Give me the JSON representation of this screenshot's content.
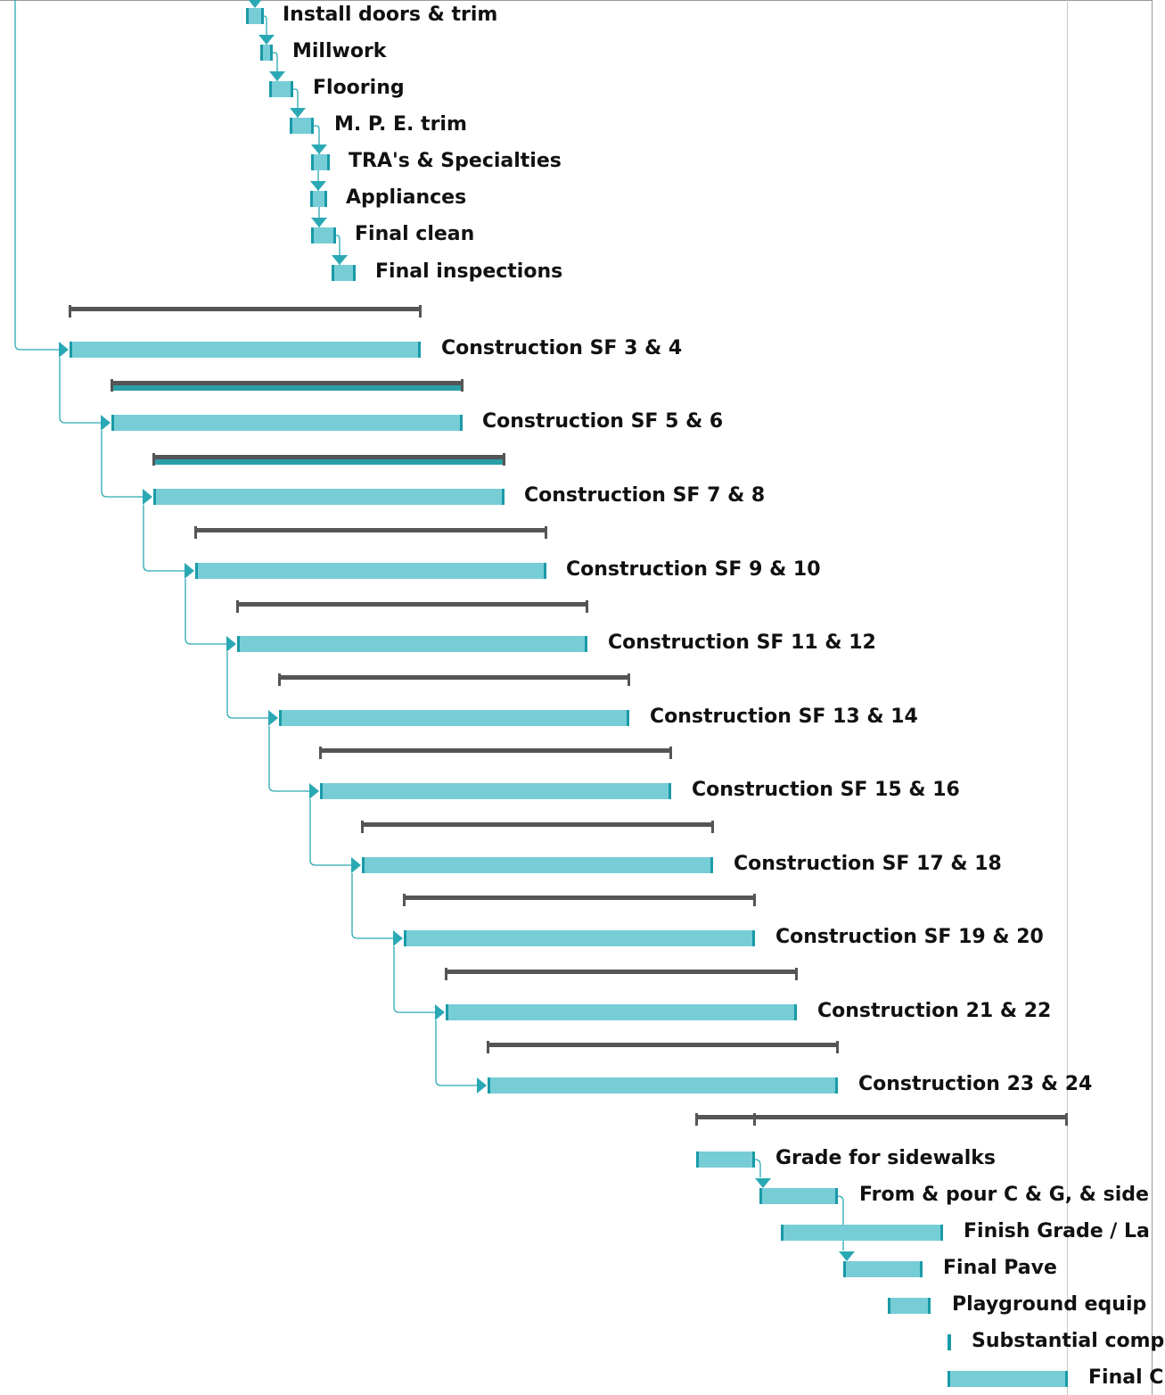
{
  "colors": {
    "task_fill": "#77cdd6",
    "task_edge": "#1a9aa7",
    "link": "#2aa9b4",
    "summary_bar": "#555555",
    "summary_progress": "#2a9fa8",
    "label": "#111111"
  },
  "tasks": [
    {
      "label": "Install doors & trim"
    },
    {
      "label": "Millwork"
    },
    {
      "label": "Flooring"
    },
    {
      "label": "M. P. E. trim"
    },
    {
      "label": "TRA's & Specialties"
    },
    {
      "label": "Appliances"
    },
    {
      "label": "Final clean"
    },
    {
      "label": "Final inspections"
    },
    {
      "label": "Construction SF 3 & 4"
    },
    {
      "label": "Construction SF 5 & 6"
    },
    {
      "label": "Construction SF 7 & 8"
    },
    {
      "label": "Construction SF 9 & 10"
    },
    {
      "label": "Construction SF 11 & 12"
    },
    {
      "label": "Construction SF 13 & 14"
    },
    {
      "label": "Construction SF 15 & 16"
    },
    {
      "label": "Construction SF 17 & 18"
    },
    {
      "label": "Construction SF 19 & 20"
    },
    {
      "label": "Construction 21 & 22"
    },
    {
      "label": "Construction 23 & 24"
    },
    {
      "label": "Grade for sidewalks"
    },
    {
      "label": "From & pour C & G, & side"
    },
    {
      "label": "Finish Grade / La"
    },
    {
      "label": "Final Pave"
    },
    {
      "label": "Playground equip"
    },
    {
      "label": "Substantial comp"
    },
    {
      "label": "Final C"
    }
  ]
}
